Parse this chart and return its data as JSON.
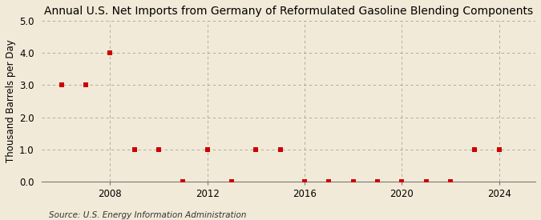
{
  "title": "Annual U.S. Net Imports from Germany of Reformulated Gasoline Blending Components",
  "ylabel": "Thousand Barrels per Day",
  "source": "Source: U.S. Energy Information Administration",
  "background_color": "#f2ead8",
  "plot_bg_color": "#f2ead8",
  "years": [
    2006,
    2007,
    2008,
    2009,
    2010,
    2011,
    2012,
    2013,
    2014,
    2015,
    2016,
    2017,
    2018,
    2019,
    2020,
    2021,
    2022,
    2023,
    2024
  ],
  "values": [
    3.0,
    3.0,
    4.0,
    1.0,
    1.0,
    0.0,
    1.0,
    0.0,
    1.0,
    1.0,
    0.0,
    0.0,
    0.0,
    0.0,
    0.0,
    0.0,
    0.0,
    1.0,
    1.0
  ],
  "marker_color": "#cc0000",
  "marker_size": 4,
  "ylim": [
    0.0,
    5.0
  ],
  "yticks": [
    0.0,
    1.0,
    2.0,
    3.0,
    4.0,
    5.0
  ],
  "xlim": [
    2005.2,
    2025.5
  ],
  "xticks": [
    2008,
    2012,
    2016,
    2020,
    2024
  ],
  "grid_color": "#999999",
  "title_fontsize": 10,
  "axis_fontsize": 8.5,
  "source_fontsize": 7.5
}
